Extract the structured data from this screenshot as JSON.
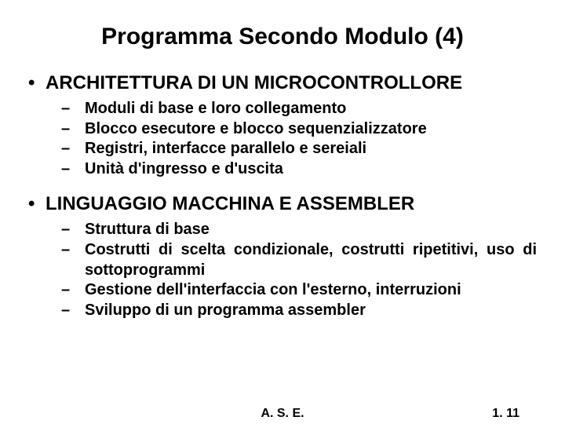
{
  "title": "Programma Secondo Modulo (4)",
  "sections": [
    {
      "heading": "ARCHITETTURA DI UN MICROCONTROLLORE",
      "items": [
        {
          "text": "Moduli di base e loro collegamento",
          "justify": false
        },
        {
          "text": "Blocco esecutore e blocco sequenzializzatore",
          "justify": false
        },
        {
          "text": "Registri, interfacce parallelo e sereiali",
          "justify": false
        },
        {
          "text": "Unità d'ingresso e d'uscita",
          "justify": false
        }
      ]
    },
    {
      "heading": "LINGUAGGIO MACCHINA E ASSEMBLER",
      "items": [
        {
          "text": "Struttura di base",
          "justify": false
        },
        {
          "text": "Costrutti di scelta condizionale, costrutti ripetitivi, uso di sottoprogrammi",
          "justify": true
        },
        {
          "text": " Gestione dell'interfaccia con l'esterno, interruzioni",
          "justify": false
        },
        {
          "text": " Sviluppo di un programma assembler",
          "justify": false
        }
      ]
    }
  ],
  "footer": {
    "center": "A. S. E.",
    "right": "1. 11"
  },
  "bullet_char": "•",
  "dash_char": "–"
}
